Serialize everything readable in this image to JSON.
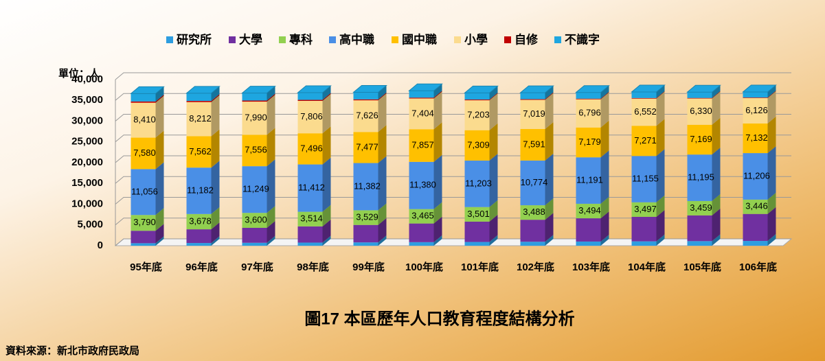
{
  "chart_data": {
    "type": "stacked-bar-3d",
    "title": "圖17 本區歷年人口教育程度結構分析",
    "y_label": "單位：人",
    "source": "資料來源：新北市政府民政局",
    "categories": [
      "95年底",
      "96年底",
      "97年底",
      "98年底",
      "99年底",
      "100年底",
      "101年底",
      "102年底",
      "103年底",
      "104年底",
      "105年底",
      "106年底"
    ],
    "ylim": [
      0,
      40000
    ],
    "yticks": [
      0,
      {
        "value": 5000,
        "label": "5,000"
      },
      {
        "value": 10000,
        "label": "10,000"
      },
      {
        "value": 15000,
        "label": "15,000"
      },
      {
        "value": 20000,
        "label": "20,000"
      },
      {
        "value": 25000,
        "label": "25,000"
      },
      {
        "value": 30000,
        "label": "30,000"
      },
      {
        "value": 35000,
        "label": "35,000"
      },
      {
        "value": 40000,
        "label": "40,000"
      }
    ],
    "grid": true,
    "legend": "top",
    "series": [
      {
        "name": "研究所",
        "color": "#2e9de0",
        "values": [
          600,
          650,
          700,
          750,
          800,
          850,
          900,
          950,
          1000,
          1050,
          1100,
          1150
        ]
      },
      {
        "name": "大學",
        "color": "#7030a0",
        "values": [
          3000,
          3300,
          3600,
          3900,
          4200,
          4500,
          4900,
          5300,
          5600,
          5900,
          6200,
          6500
        ]
      },
      {
        "name": "專科",
        "color": "#92d050",
        "values": [
          3790,
          3678,
          3600,
          3514,
          3529,
          3465,
          3501,
          3488,
          3494,
          3497,
          3459,
          3446
        ],
        "value_labels": [
          "3,790",
          "3,678",
          "3,600",
          "3,514",
          "3,529",
          "3,465",
          "3,501",
          "3,488",
          "3,494",
          "3,497",
          "3,459",
          "3,446"
        ]
      },
      {
        "name": "高中職",
        "color": "#4a8fe6",
        "values": [
          11056,
          11182,
          11249,
          11412,
          11382,
          11380,
          11203,
          10774,
          11191,
          11155,
          11195,
          11206
        ],
        "value_labels": [
          "11,056",
          "11,182",
          "11,249",
          "11,412",
          "11,382",
          "11,380",
          "11,203",
          "10,774",
          "11,191",
          "11,155",
          "11,195",
          "11,206"
        ]
      },
      {
        "name": "國中職",
        "color": "#ffc000",
        "values": [
          7580,
          7562,
          7556,
          7496,
          7477,
          7857,
          7309,
          7591,
          7179,
          7271,
          7169,
          7132
        ],
        "value_labels": [
          "7,580",
          "7,562",
          "7,556",
          "7,496",
          "7,477",
          "7,857",
          "7,309",
          "7,591",
          "7,179",
          "7,271",
          "7,169",
          "7,132"
        ]
      },
      {
        "name": "小學",
        "color": "#fbdb8e",
        "values": [
          8410,
          8212,
          7990,
          7806,
          7626,
          7404,
          7203,
          7019,
          6796,
          6552,
          6330,
          6126
        ],
        "value_labels": [
          "8,410",
          "8,212",
          "7,990",
          "7,806",
          "7,626",
          "7,404",
          "7,203",
          "7,019",
          "6,796",
          "6,552",
          "6,330",
          "6,126"
        ]
      },
      {
        "name": "自修",
        "color": "#c00000",
        "values": [
          300,
          280,
          260,
          240,
          220,
          200,
          180,
          160,
          150,
          140,
          130,
          120
        ]
      },
      {
        "name": "不識字",
        "color": "#1ea6e0",
        "values": [
          1900,
          1850,
          1800,
          1750,
          1700,
          1650,
          1600,
          1550,
          1500,
          1450,
          1400,
          1350
        ]
      }
    ]
  }
}
